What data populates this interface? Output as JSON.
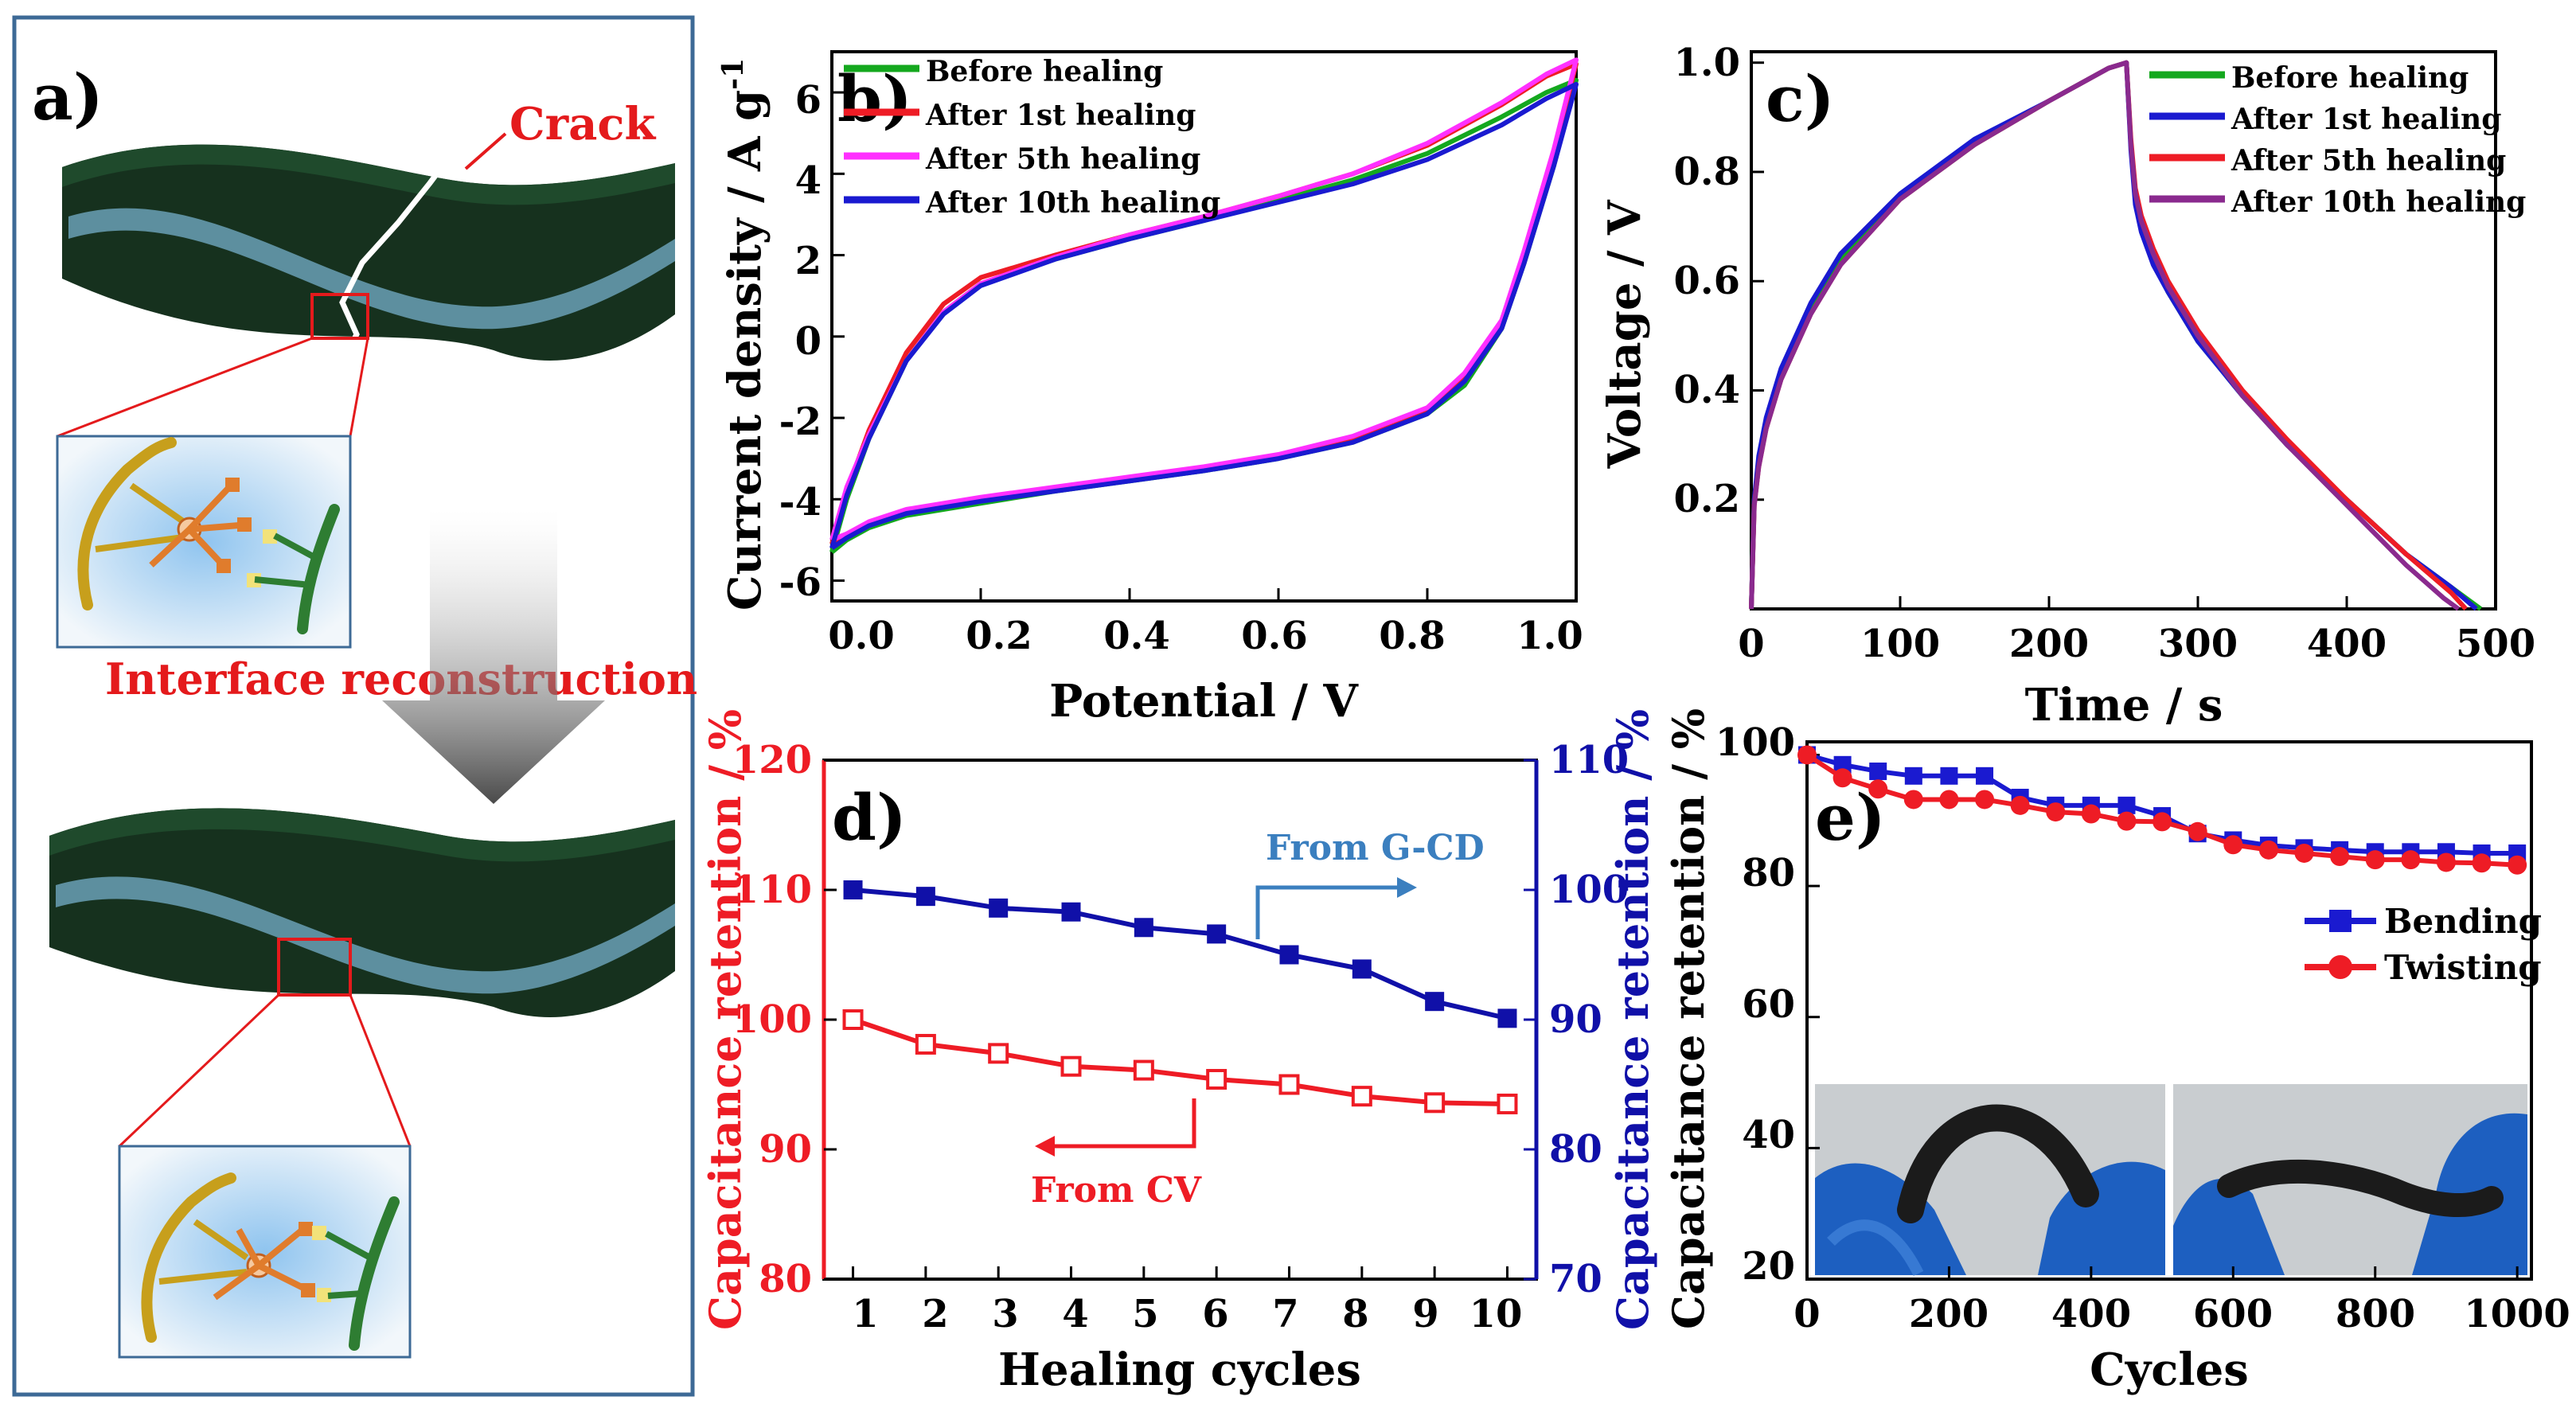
{
  "colors": {
    "green": "#14a81e",
    "red": "#ee1c25",
    "magenta": "#ff30ff",
    "blue": "#1a1ad0",
    "purple": "#8a2a8e",
    "navy": "#1010a8",
    "steel": "#3b7fbf",
    "board": "#16311e",
    "stripe": "#5d8f9f",
    "panel_border": "#3d6a96",
    "annotation_red": "#e41a1c"
  },
  "panel_a": {
    "label": "a)",
    "crack_label": "Crack",
    "interface_label": "Interface reconstruction",
    "icons": [
      "layered-device-cracked",
      "interface-molecule-inset",
      "down-arrow",
      "layered-device-healed"
    ]
  },
  "chart_data": [
    {
      "id": "b",
      "type": "line",
      "label": "b)",
      "xlabel": "Potential / V",
      "ylabel": "Current density / A g",
      "ylabel_sup": "-1",
      "xlim": [
        0,
        1
      ],
      "ylim": [
        -6.5,
        7
      ],
      "xticks": [
        0.0,
        0.2,
        0.4,
        0.6,
        0.8,
        1.0
      ],
      "xtick_labels": [
        "0.0",
        "0.2",
        "0.4",
        "0.6",
        "0.8",
        "1.0"
      ],
      "yticks": [
        -6,
        -4,
        -2,
        0,
        2,
        4,
        6
      ],
      "ytick_labels": [
        "-6",
        "-4",
        "-2",
        "0",
        "2",
        "4",
        "6"
      ],
      "legend": "top-left",
      "series": [
        {
          "name": "Before healing",
          "color": "#14a81e",
          "x": [
            0,
            0.02,
            0.05,
            0.1,
            0.15,
            0.2,
            0.3,
            0.4,
            0.5,
            0.6,
            0.7,
            0.8,
            0.9,
            0.96,
            1.0,
            0.97,
            0.93,
            0.9,
            0.85,
            0.8,
            0.7,
            0.6,
            0.5,
            0.4,
            0.3,
            0.2,
            0.1,
            0.05,
            0.02,
            0
          ],
          "y": [
            -5.3,
            -4.0,
            -2.5,
            -0.6,
            0.6,
            1.3,
            1.9,
            2.4,
            2.85,
            3.35,
            3.85,
            4.5,
            5.4,
            6.0,
            6.3,
            4.2,
            1.8,
            0.2,
            -1.2,
            -1.9,
            -2.6,
            -3.0,
            -3.3,
            -3.55,
            -3.8,
            -4.1,
            -4.4,
            -4.7,
            -5.0,
            -5.3
          ]
        },
        {
          "name": "After 1st healing",
          "color": "#ee1c25",
          "x": [
            0,
            0.02,
            0.05,
            0.1,
            0.15,
            0.2,
            0.3,
            0.4,
            0.5,
            0.6,
            0.7,
            0.8,
            0.9,
            0.96,
            1.0,
            0.97,
            0.93,
            0.9,
            0.85,
            0.8,
            0.7,
            0.6,
            0.5,
            0.4,
            0.3,
            0.2,
            0.1,
            0.05,
            0.02,
            0
          ],
          "y": [
            -5.1,
            -3.8,
            -2.3,
            -0.4,
            0.8,
            1.45,
            2.0,
            2.5,
            2.95,
            3.45,
            4.0,
            4.7,
            5.7,
            6.4,
            6.7,
            4.5,
            2.0,
            0.4,
            -1.0,
            -1.8,
            -2.5,
            -2.95,
            -3.25,
            -3.5,
            -3.75,
            -4.0,
            -4.3,
            -4.6,
            -4.9,
            -5.1
          ]
        },
        {
          "name": "After 5th healing",
          "color": "#ff30ff",
          "x": [
            0,
            0.02,
            0.05,
            0.1,
            0.15,
            0.2,
            0.3,
            0.4,
            0.5,
            0.6,
            0.7,
            0.8,
            0.9,
            0.96,
            1.0,
            0.97,
            0.93,
            0.9,
            0.85,
            0.8,
            0.7,
            0.6,
            0.5,
            0.4,
            0.3,
            0.2,
            0.1,
            0.05,
            0.02,
            0
          ],
          "y": [
            -5.0,
            -3.7,
            -2.4,
            -0.6,
            0.6,
            1.3,
            1.95,
            2.5,
            2.95,
            3.45,
            4.0,
            4.75,
            5.75,
            6.45,
            6.8,
            4.6,
            2.1,
            0.4,
            -0.9,
            -1.75,
            -2.45,
            -2.9,
            -3.2,
            -3.45,
            -3.7,
            -3.95,
            -4.25,
            -4.55,
            -4.85,
            -5.0
          ]
        },
        {
          "name": "After 10th healing",
          "color": "#1a1ad0",
          "x": [
            0,
            0.02,
            0.05,
            0.1,
            0.15,
            0.2,
            0.3,
            0.4,
            0.5,
            0.6,
            0.7,
            0.8,
            0.9,
            0.96,
            1.0,
            0.97,
            0.93,
            0.9,
            0.85,
            0.8,
            0.7,
            0.6,
            0.5,
            0.4,
            0.3,
            0.2,
            0.1,
            0.05,
            0.02,
            0
          ],
          "y": [
            -5.2,
            -3.9,
            -2.5,
            -0.6,
            0.55,
            1.25,
            1.9,
            2.4,
            2.85,
            3.3,
            3.75,
            4.35,
            5.2,
            5.85,
            6.2,
            4.2,
            1.8,
            0.2,
            -1.1,
            -1.9,
            -2.6,
            -3.0,
            -3.3,
            -3.55,
            -3.8,
            -4.05,
            -4.35,
            -4.65,
            -4.95,
            -5.2
          ]
        }
      ]
    },
    {
      "id": "c",
      "type": "line",
      "label": "c)",
      "xlabel": "Time / s",
      "ylabel": "Voltage / V",
      "xlim": [
        0,
        500
      ],
      "ylim": [
        0,
        1.02
      ],
      "xticks": [
        0,
        100,
        200,
        300,
        400,
        500
      ],
      "xtick_labels": [
        "0",
        "100",
        "200",
        "300",
        "400",
        "500"
      ],
      "yticks": [
        0.2,
        0.4,
        0.6,
        0.8,
        1.0
      ],
      "ytick_labels": [
        "0.2",
        "0.4",
        "0.6",
        "0.8",
        "1.0"
      ],
      "legend": "top-right",
      "series": [
        {
          "name": "Before healing",
          "color": "#14a81e",
          "x": [
            0,
            2,
            5,
            10,
            20,
            40,
            60,
            100,
            150,
            200,
            240,
            252,
            255,
            258,
            262,
            270,
            280,
            300,
            330,
            360,
            400,
            440,
            470,
            490
          ],
          "y": [
            0,
            0.2,
            0.27,
            0.34,
            0.43,
            0.55,
            0.64,
            0.75,
            0.85,
            0.93,
            0.99,
            1.0,
            0.85,
            0.75,
            0.7,
            0.64,
            0.58,
            0.49,
            0.39,
            0.3,
            0.2,
            0.1,
            0.04,
            0
          ]
        },
        {
          "name": "After 1st healing",
          "color": "#1a1ad0",
          "x": [
            0,
            2,
            5,
            10,
            20,
            40,
            60,
            100,
            150,
            200,
            240,
            252,
            255,
            258,
            262,
            270,
            280,
            300,
            330,
            360,
            400,
            440,
            470,
            487
          ],
          "y": [
            0,
            0.2,
            0.28,
            0.35,
            0.44,
            0.56,
            0.65,
            0.76,
            0.86,
            0.93,
            0.99,
            1.0,
            0.84,
            0.74,
            0.69,
            0.63,
            0.58,
            0.49,
            0.39,
            0.3,
            0.2,
            0.1,
            0.04,
            0
          ]
        },
        {
          "name": "After 5th healing",
          "color": "#ee1c25",
          "x": [
            0,
            2,
            5,
            10,
            20,
            40,
            60,
            100,
            150,
            200,
            240,
            252,
            255,
            258,
            262,
            270,
            280,
            300,
            330,
            360,
            400,
            440,
            470,
            480
          ],
          "y": [
            0,
            0.19,
            0.26,
            0.33,
            0.42,
            0.54,
            0.63,
            0.75,
            0.85,
            0.93,
            0.99,
            1.0,
            0.86,
            0.77,
            0.72,
            0.66,
            0.6,
            0.51,
            0.4,
            0.31,
            0.2,
            0.1,
            0.03,
            0
          ]
        },
        {
          "name": "After 10th healing",
          "color": "#8a2a8e",
          "x": [
            0,
            2,
            5,
            10,
            20,
            40,
            60,
            100,
            150,
            200,
            240,
            252,
            255,
            258,
            262,
            270,
            280,
            300,
            330,
            360,
            400,
            440,
            465,
            475
          ],
          "y": [
            0,
            0.19,
            0.26,
            0.33,
            0.42,
            0.54,
            0.63,
            0.75,
            0.85,
            0.93,
            0.99,
            1.0,
            0.85,
            0.76,
            0.71,
            0.65,
            0.59,
            0.5,
            0.39,
            0.3,
            0.19,
            0.08,
            0.02,
            0
          ]
        }
      ]
    },
    {
      "id": "d",
      "type": "line",
      "label": "d)",
      "xlabel": "Healing cycles",
      "ylabel": "Capacitance retention / %",
      "ylabel_right": "Capacitance retention / %",
      "xlim": [
        0.6,
        10.4
      ],
      "ylim": [
        80,
        120
      ],
      "ylim_right": [
        70,
        110
      ],
      "xticks": [
        1,
        2,
        3,
        4,
        5,
        6,
        7,
        8,
        9,
        10
      ],
      "xtick_labels": [
        "1",
        "2",
        "3",
        "4",
        "5",
        "6",
        "7",
        "8",
        "9",
        "10"
      ],
      "yticks": [
        80,
        90,
        100,
        110,
        120
      ],
      "ytick_labels": [
        "80",
        "90",
        "100",
        "110",
        "120"
      ],
      "yticks_right": [
        70,
        80,
        90,
        100,
        110
      ],
      "ytick_labels_right": [
        "70",
        "80",
        "90",
        "100",
        "110"
      ],
      "annotations": [
        "From G-CD",
        "From CV"
      ],
      "series": [
        {
          "name": "From G-CD",
          "axis": "right",
          "color": "#1010a8",
          "marker": "filled-square",
          "x": [
            1,
            2,
            3,
            4,
            5,
            6,
            7,
            8,
            9,
            10
          ],
          "y": [
            100,
            99.5,
            98.6,
            98.3,
            97.1,
            96.6,
            95.0,
            93.9,
            91.4,
            90.1
          ]
        },
        {
          "name": "From CV",
          "axis": "left",
          "color": "#ee1c25",
          "marker": "open-square",
          "x": [
            1,
            2,
            3,
            4,
            5,
            6,
            7,
            8,
            9,
            10
          ],
          "y": [
            100,
            98.1,
            97.4,
            96.4,
            96.1,
            95.4,
            95.0,
            94.1,
            93.6,
            93.5
          ]
        }
      ]
    },
    {
      "id": "e",
      "type": "line",
      "label": "e)",
      "xlabel": "Cycles",
      "ylabel": "Capacitance retention / %",
      "xlim": [
        0,
        1020
      ],
      "ylim": [
        20,
        102
      ],
      "xticks": [
        0,
        200,
        400,
        600,
        800,
        1000
      ],
      "xtick_labels": [
        "0",
        "200",
        "400",
        "600",
        "800",
        "1000"
      ],
      "yticks": [
        20,
        40,
        60,
        80,
        100
      ],
      "ytick_labels": [
        "20",
        "40",
        "60",
        "80",
        "100"
      ],
      "legend": "right",
      "insets": [
        "bending-photo",
        "twisting-photo"
      ],
      "series": [
        {
          "name": "Bending",
          "color": "#1a1ad0",
          "marker": "filled-square",
          "x": [
            0,
            50,
            100,
            150,
            200,
            250,
            300,
            350,
            400,
            450,
            500,
            550,
            600,
            650,
            700,
            750,
            800,
            850,
            900,
            950,
            1000
          ],
          "y": [
            100,
            98.5,
            97.5,
            96.8,
            96.8,
            96.8,
            93.5,
            92.3,
            92.3,
            92.3,
            90.7,
            88.0,
            87.0,
            86.2,
            85.8,
            85.5,
            85.2,
            85.2,
            85.2,
            85.0,
            85.0
          ]
        },
        {
          "name": "Twisting",
          "color": "#ee1c25",
          "marker": "filled-circle",
          "x": [
            0,
            50,
            100,
            150,
            200,
            250,
            300,
            350,
            400,
            450,
            500,
            550,
            600,
            650,
            700,
            750,
            800,
            850,
            900,
            950,
            1000
          ],
          "y": [
            100,
            96.5,
            94.8,
            93.2,
            93.2,
            93.2,
            92.3,
            91.3,
            91.0,
            89.9,
            89.8,
            88.3,
            86.3,
            85.5,
            85.0,
            84.5,
            84.0,
            84.0,
            83.6,
            83.5,
            83.2
          ]
        }
      ]
    }
  ]
}
